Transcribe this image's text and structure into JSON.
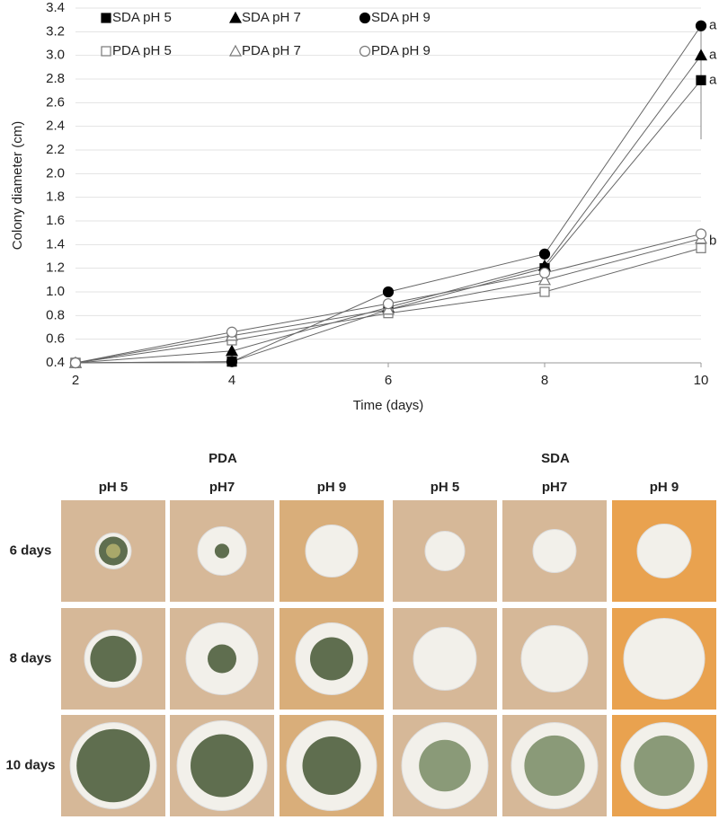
{
  "chart_data": {
    "type": "line",
    "x_label": "Time (days)",
    "y_label": "Colony diameter (cm)",
    "x": [
      2,
      4,
      6,
      8,
      10
    ],
    "xlim": [
      2,
      10
    ],
    "xticks": [
      2,
      4,
      6,
      8,
      10
    ],
    "ylim": [
      0.4,
      3.4
    ],
    "yticks": [
      0.4,
      0.6,
      0.8,
      {
        "value": 1,
        "label": "1.0"
      },
      1.2,
      1.4,
      1.6,
      1.8,
      {
        "value": 2,
        "label": "2.0"
      },
      2.2,
      2.4,
      2.6,
      2.8,
      {
        "value": 3,
        "label": "3.0"
      },
      3.2,
      3.4
    ],
    "grid": true,
    "legend": "top-left",
    "series": [
      {
        "name": "SDA pH 5",
        "color": "#000000",
        "marker": "square",
        "filled": true,
        "values": [
          0.4,
          0.41,
          0.85,
          1.2,
          2.79
        ],
        "errors": [
          null,
          null,
          null,
          null,
          0.5
        ]
      },
      {
        "name": "SDA pH 7",
        "color": "#000000",
        "marker": "triangle",
        "filled": true,
        "values": [
          0.4,
          0.5,
          0.87,
          1.22,
          3.0
        ]
      },
      {
        "name": "SDA pH 9",
        "color": "#000000",
        "marker": "circle",
        "filled": true,
        "values": [
          0.4,
          0.41,
          1.0,
          1.32,
          3.25
        ]
      },
      {
        "name": "PDA pH 5",
        "color": "#777777",
        "marker": "square",
        "filled": false,
        "values": [
          0.4,
          0.59,
          0.82,
          1.0,
          1.37
        ]
      },
      {
        "name": "PDA pH 7",
        "color": "#777777",
        "marker": "triangle",
        "filled": false,
        "values": [
          0.4,
          0.63,
          0.85,
          1.1,
          1.45
        ]
      },
      {
        "name": "PDA pH 9",
        "color": "#777777",
        "marker": "circle",
        "filled": false,
        "values": [
          0.4,
          0.66,
          0.9,
          1.16,
          1.49
        ]
      }
    ],
    "annotations": [
      {
        "text": "a",
        "x": 10,
        "y": 3.25
      },
      {
        "text": "a",
        "x": 10,
        "y": 3.0
      },
      {
        "text": "a",
        "x": 10,
        "y": 2.79
      },
      {
        "text": "b",
        "x": 10,
        "y": 1.43
      }
    ]
  },
  "photo_panel": {
    "groups": [
      "PDA",
      "SDA"
    ],
    "columns": [
      "pH 5",
      "pH7",
      "pH 9",
      "pH 5",
      "pH7",
      "pH 9"
    ],
    "rows": [
      "6 days",
      "8 days",
      "10 days"
    ]
  }
}
